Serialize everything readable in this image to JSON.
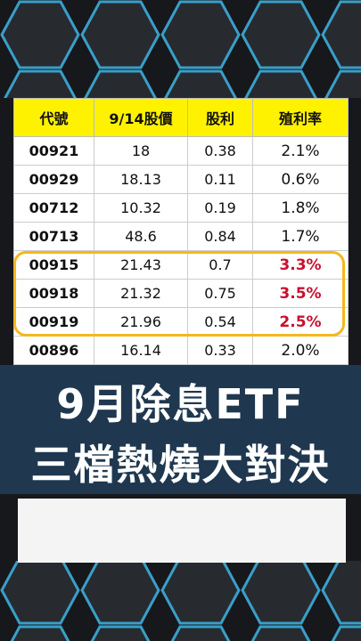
{
  "table": {
    "header": [
      "代號",
      "9/14股價",
      "股利",
      "殖利率"
    ],
    "rows": [
      [
        "00921",
        "18",
        "0.38",
        "2.1%"
      ],
      [
        "00929",
        "18.13",
        "0.11",
        "0.6%"
      ],
      [
        "00712",
        "10.32",
        "0.19",
        "1.8%"
      ],
      [
        "00713",
        "48.6",
        "0.84",
        "1.7%"
      ],
      [
        "00915",
        "21.43",
        "0.7",
        "3.3%"
      ],
      [
        "00918",
        "21.32",
        "0.75",
        "3.5%"
      ],
      [
        "00919",
        "21.96",
        "0.54",
        "2.5%"
      ],
      [
        "00896",
        "16.14",
        "0.33",
        "2.0%"
      ]
    ]
  },
  "banner": {
    "line1": "9月除息ETF",
    "line2": "三檔熱燒大對決"
  }
}
